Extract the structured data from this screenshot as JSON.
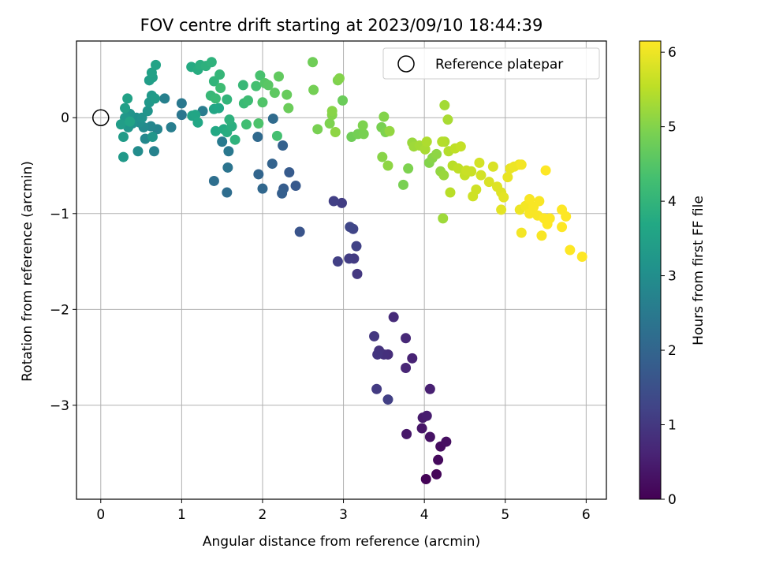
{
  "chart_data": {
    "type": "scatter",
    "title": "FOV centre drift starting at 2023/09/10 18:44:39",
    "xlabel": "Angular distance from reference (arcmin)",
    "ylabel": "Rotation from reference (arcmin)",
    "xlim": [
      -0.3,
      6.25
    ],
    "ylim": [
      -3.98,
      0.8
    ],
    "x_ticks": [
      0,
      1,
      2,
      3,
      4,
      5,
      6
    ],
    "x_tick_labels": [
      "0",
      "1",
      "2",
      "3",
      "4",
      "5",
      "6"
    ],
    "y_ticks": [
      0,
      -1,
      -2,
      -3
    ],
    "y_tick_labels": [
      "0",
      "−1",
      "−2",
      "−3"
    ],
    "grid": true,
    "legend": {
      "position": "top-right",
      "entries": [
        "Reference platepar"
      ]
    },
    "reference_point": {
      "label": "Reference platepar",
      "x": 0,
      "y": 0
    },
    "colorbar": {
      "label": "Hours from first FF file",
      "min": 0,
      "max": 6.15,
      "ticks": [
        0,
        1,
        2,
        3,
        4,
        5,
        6
      ],
      "tick_labels": [
        "0",
        "1",
        "2",
        "3",
        "4",
        "5",
        "6"
      ],
      "colormap": "viridis"
    },
    "points": [
      {
        "x": 4.02,
        "y": -3.77,
        "h": 0.05
      },
      {
        "x": 4.15,
        "y": -3.72,
        "h": 0.1
      },
      {
        "x": 4.17,
        "y": -3.57,
        "h": 0.15
      },
      {
        "x": 4.2,
        "y": -3.43,
        "h": 0.2
      },
      {
        "x": 4.27,
        "y": -3.38,
        "h": 0.25
      },
      {
        "x": 4.07,
        "y": -3.33,
        "h": 0.3
      },
      {
        "x": 3.97,
        "y": -3.24,
        "h": 0.35
      },
      {
        "x": 3.78,
        "y": -3.3,
        "h": 0.4
      },
      {
        "x": 3.98,
        "y": -3.13,
        "h": 0.45
      },
      {
        "x": 4.03,
        "y": -3.11,
        "h": 0.5
      },
      {
        "x": 4.07,
        "y": -2.83,
        "h": 0.55
      },
      {
        "x": 3.85,
        "y": -2.51,
        "h": 0.6
      },
      {
        "x": 3.77,
        "y": -2.61,
        "h": 0.65
      },
      {
        "x": 3.77,
        "y": -2.3,
        "h": 0.7
      },
      {
        "x": 3.62,
        "y": -2.08,
        "h": 0.75
      },
      {
        "x": 3.55,
        "y": -2.47,
        "h": 0.8
      },
      {
        "x": 3.5,
        "y": -2.47,
        "h": 0.85
      },
      {
        "x": 3.44,
        "y": -2.43,
        "h": 0.9
      },
      {
        "x": 3.42,
        "y": -2.47,
        "h": 0.95
      },
      {
        "x": 3.38,
        "y": -2.28,
        "h": 1.0
      },
      {
        "x": 3.41,
        "y": -2.83,
        "h": 1.05
      },
      {
        "x": 3.55,
        "y": -2.94,
        "h": 1.15
      },
      {
        "x": 3.17,
        "y": -1.63,
        "h": 1.0
      },
      {
        "x": 3.13,
        "y": -1.47,
        "h": 1.05
      },
      {
        "x": 3.07,
        "y": -1.47,
        "h": 1.1
      },
      {
        "x": 2.93,
        "y": -1.5,
        "h": 1.15
      },
      {
        "x": 3.16,
        "y": -1.34,
        "h": 1.2
      },
      {
        "x": 3.12,
        "y": -1.16,
        "h": 1.25
      },
      {
        "x": 3.08,
        "y": -1.14,
        "h": 1.3
      },
      {
        "x": 2.98,
        "y": -0.89,
        "h": 1.1
      },
      {
        "x": 2.88,
        "y": -0.87,
        "h": 1.15
      },
      {
        "x": 2.46,
        "y": -1.19,
        "h": 1.6
      },
      {
        "x": 2.41,
        "y": -0.71,
        "h": 1.7
      },
      {
        "x": 2.33,
        "y": -0.57,
        "h": 1.75
      },
      {
        "x": 2.26,
        "y": -0.74,
        "h": 1.8
      },
      {
        "x": 2.24,
        "y": -0.79,
        "h": 1.85
      },
      {
        "x": 2.25,
        "y": -0.29,
        "h": 1.9
      },
      {
        "x": 2.12,
        "y": -0.48,
        "h": 1.95
      },
      {
        "x": 1.95,
        "y": -0.59,
        "h": 2.0
      },
      {
        "x": 2.0,
        "y": -0.74,
        "h": 2.05
      },
      {
        "x": 1.94,
        "y": -0.2,
        "h": 2.1
      },
      {
        "x": 2.13,
        "y": -0.01,
        "h": 2.15
      },
      {
        "x": 1.56,
        "y": -0.78,
        "h": 2.2
      },
      {
        "x": 1.4,
        "y": -0.66,
        "h": 2.25
      },
      {
        "x": 1.57,
        "y": -0.52,
        "h": 2.35
      },
      {
        "x": 1.58,
        "y": -0.35,
        "h": 2.45
      },
      {
        "x": 1.5,
        "y": -0.25,
        "h": 2.5
      },
      {
        "x": 1.26,
        "y": 0.07,
        "h": 2.55
      },
      {
        "x": 1.0,
        "y": 0.03,
        "h": 2.4
      },
      {
        "x": 1.0,
        "y": 0.15,
        "h": 2.45
      },
      {
        "x": 0.87,
        "y": -0.1,
        "h": 2.6
      },
      {
        "x": 0.79,
        "y": 0.2,
        "h": 2.65
      },
      {
        "x": 0.66,
        "y": -0.35,
        "h": 2.7
      },
      {
        "x": 0.7,
        "y": -0.12,
        "h": 2.75
      },
      {
        "x": 0.62,
        "y": -0.09,
        "h": 2.8
      },
      {
        "x": 0.55,
        "y": -0.22,
        "h": 2.85
      },
      {
        "x": 0.53,
        "y": -0.1,
        "h": 2.9
      },
      {
        "x": 0.46,
        "y": -0.35,
        "h": 2.95
      },
      {
        "x": 0.48,
        "y": -0.05,
        "h": 3.0
      },
      {
        "x": 0.44,
        "y": 0.0,
        "h": 3.05
      },
      {
        "x": 0.39,
        "y": -0.06,
        "h": 3.1
      },
      {
        "x": 0.36,
        "y": 0.04,
        "h": 3.15
      },
      {
        "x": 0.34,
        "y": -0.1,
        "h": 3.2
      },
      {
        "x": 0.3,
        "y": 0.0,
        "h": 3.25
      },
      {
        "x": 0.28,
        "y": -0.41,
        "h": 3.3
      },
      {
        "x": 0.28,
        "y": -0.2,
        "h": 3.35
      },
      {
        "x": 0.25,
        "y": -0.07,
        "h": 3.4
      },
      {
        "x": 0.3,
        "y": 0.1,
        "h": 3.45
      },
      {
        "x": 0.33,
        "y": 0.2,
        "h": 3.5
      },
      {
        "x": 0.36,
        "y": -0.04,
        "h": 3.55
      },
      {
        "x": 0.51,
        "y": 0.0,
        "h": 3.1
      },
      {
        "x": 0.58,
        "y": 0.07,
        "h": 3.15
      },
      {
        "x": 0.64,
        "y": -0.2,
        "h": 3.2
      },
      {
        "x": 0.6,
        "y": 0.16,
        "h": 3.25
      },
      {
        "x": 0.63,
        "y": 0.23,
        "h": 3.3
      },
      {
        "x": 0.67,
        "y": 0.2,
        "h": 3.35
      },
      {
        "x": 0.6,
        "y": 0.39,
        "h": 3.4
      },
      {
        "x": 0.64,
        "y": 0.42,
        "h": 3.45
      },
      {
        "x": 0.63,
        "y": 0.47,
        "h": 3.5
      },
      {
        "x": 0.68,
        "y": 0.55,
        "h": 3.55
      },
      {
        "x": 1.12,
        "y": 0.53,
        "h": 3.75
      },
      {
        "x": 1.2,
        "y": 0.5,
        "h": 3.8
      },
      {
        "x": 1.23,
        "y": 0.55,
        "h": 3.85
      },
      {
        "x": 1.3,
        "y": 0.54,
        "h": 3.9
      },
      {
        "x": 1.37,
        "y": 0.58,
        "h": 3.95
      },
      {
        "x": 1.4,
        "y": 0.38,
        "h": 4.0
      },
      {
        "x": 1.47,
        "y": 0.45,
        "h": 4.05
      },
      {
        "x": 1.36,
        "y": 0.23,
        "h": 4.1
      },
      {
        "x": 1.42,
        "y": 0.2,
        "h": 4.15
      },
      {
        "x": 1.48,
        "y": 0.31,
        "h": 4.2
      },
      {
        "x": 1.4,
        "y": 0.09,
        "h": 3.6
      },
      {
        "x": 1.46,
        "y": 0.1,
        "h": 3.65
      },
      {
        "x": 1.42,
        "y": -0.14,
        "h": 3.7
      },
      {
        "x": 1.52,
        "y": -0.12,
        "h": 3.75
      },
      {
        "x": 1.56,
        "y": -0.15,
        "h": 3.8
      },
      {
        "x": 1.62,
        "y": -0.09,
        "h": 3.85
      },
      {
        "x": 1.59,
        "y": -0.02,
        "h": 3.9
      },
      {
        "x": 1.66,
        "y": -0.23,
        "h": 3.95
      },
      {
        "x": 1.56,
        "y": 0.19,
        "h": 4.0
      },
      {
        "x": 1.13,
        "y": 0.02,
        "h": 3.55
      },
      {
        "x": 1.17,
        "y": 0.03,
        "h": 3.6
      },
      {
        "x": 1.2,
        "y": -0.05,
        "h": 3.65
      },
      {
        "x": 1.76,
        "y": 0.34,
        "h": 4.1
      },
      {
        "x": 1.77,
        "y": 0.15,
        "h": 4.15
      },
      {
        "x": 1.82,
        "y": 0.18,
        "h": 4.2
      },
      {
        "x": 1.8,
        "y": -0.07,
        "h": 4.25
      },
      {
        "x": 1.92,
        "y": 0.33,
        "h": 4.3
      },
      {
        "x": 1.97,
        "y": 0.44,
        "h": 4.35
      },
      {
        "x": 1.95,
        "y": -0.06,
        "h": 4.4
      },
      {
        "x": 2.0,
        "y": 0.16,
        "h": 4.45
      },
      {
        "x": 2.03,
        "y": 0.36,
        "h": 4.5
      },
      {
        "x": 2.07,
        "y": 0.34,
        "h": 4.55
      },
      {
        "x": 2.15,
        "y": 0.26,
        "h": 4.6
      },
      {
        "x": 2.2,
        "y": 0.43,
        "h": 4.65
      },
      {
        "x": 2.3,
        "y": 0.24,
        "h": 4.7
      },
      {
        "x": 2.32,
        "y": 0.1,
        "h": 4.75
      },
      {
        "x": 2.18,
        "y": -0.19,
        "h": 4.3
      },
      {
        "x": 2.62,
        "y": 0.58,
        "h": 4.8
      },
      {
        "x": 2.63,
        "y": 0.29,
        "h": 4.85
      },
      {
        "x": 2.68,
        "y": -0.12,
        "h": 4.9
      },
      {
        "x": 2.83,
        "y": -0.06,
        "h": 4.95
      },
      {
        "x": 2.86,
        "y": 0.03,
        "h": 5.0
      },
      {
        "x": 2.86,
        "y": 0.07,
        "h": 5.05
      },
      {
        "x": 2.9,
        "y": -0.15,
        "h": 5.1
      },
      {
        "x": 2.93,
        "y": 0.39,
        "h": 4.95
      },
      {
        "x": 2.95,
        "y": 0.41,
        "h": 5.0
      },
      {
        "x": 2.99,
        "y": 0.18,
        "h": 4.75
      },
      {
        "x": 3.1,
        "y": -0.2,
        "h": 4.8
      },
      {
        "x": 3.18,
        "y": -0.17,
        "h": 4.85
      },
      {
        "x": 3.25,
        "y": -0.17,
        "h": 4.9
      },
      {
        "x": 3.24,
        "y": -0.08,
        "h": 4.95
      },
      {
        "x": 3.47,
        "y": -0.1,
        "h": 4.9
      },
      {
        "x": 3.52,
        "y": -0.15,
        "h": 4.95
      },
      {
        "x": 3.5,
        "y": 0.01,
        "h": 5.0
      },
      {
        "x": 3.48,
        "y": -0.41,
        "h": 5.05
      },
      {
        "x": 3.55,
        "y": -0.5,
        "h": 5.1
      },
      {
        "x": 3.57,
        "y": -0.14,
        "h": 5.15
      },
      {
        "x": 3.74,
        "y": -0.7,
        "h": 4.9
      },
      {
        "x": 3.8,
        "y": -0.53,
        "h": 4.95
      },
      {
        "x": 3.85,
        "y": -0.26,
        "h": 5.2
      },
      {
        "x": 3.87,
        "y": -0.3,
        "h": 5.25
      },
      {
        "x": 3.94,
        "y": -0.29,
        "h": 5.3
      },
      {
        "x": 4.01,
        "y": -0.33,
        "h": 5.35
      },
      {
        "x": 4.03,
        "y": -0.25,
        "h": 5.4
      },
      {
        "x": 4.06,
        "y": -0.47,
        "h": 5.0
      },
      {
        "x": 4.1,
        "y": -0.42,
        "h": 5.05
      },
      {
        "x": 4.15,
        "y": -0.38,
        "h": 5.1
      },
      {
        "x": 4.2,
        "y": -0.56,
        "h": 5.15
      },
      {
        "x": 4.24,
        "y": -0.6,
        "h": 5.2
      },
      {
        "x": 4.23,
        "y": -1.05,
        "h": 5.25
      },
      {
        "x": 4.25,
        "y": 0.13,
        "h": 5.3
      },
      {
        "x": 4.29,
        "y": -0.02,
        "h": 5.35
      },
      {
        "x": 4.25,
        "y": -0.25,
        "h": 5.4
      },
      {
        "x": 4.22,
        "y": -0.25,
        "h": 5.45
      },
      {
        "x": 4.3,
        "y": -0.35,
        "h": 5.45
      },
      {
        "x": 4.35,
        "y": -0.5,
        "h": 5.5
      },
      {
        "x": 4.32,
        "y": -0.78,
        "h": 5.5
      },
      {
        "x": 4.38,
        "y": -0.32,
        "h": 5.55
      },
      {
        "x": 4.42,
        "y": -0.53,
        "h": 5.55
      },
      {
        "x": 4.45,
        "y": -0.3,
        "h": 5.6
      },
      {
        "x": 4.5,
        "y": -0.6,
        "h": 5.6
      },
      {
        "x": 4.52,
        "y": -0.55,
        "h": 5.65
      },
      {
        "x": 4.58,
        "y": -0.56,
        "h": 5.65
      },
      {
        "x": 4.6,
        "y": -0.82,
        "h": 5.7
      },
      {
        "x": 4.64,
        "y": -0.75,
        "h": 5.7
      },
      {
        "x": 4.68,
        "y": -0.47,
        "h": 5.75
      },
      {
        "x": 4.7,
        "y": -0.6,
        "h": 5.75
      },
      {
        "x": 4.8,
        "y": -0.67,
        "h": 5.8
      },
      {
        "x": 4.85,
        "y": -0.51,
        "h": 5.8
      },
      {
        "x": 4.9,
        "y": -0.72,
        "h": 5.85
      },
      {
        "x": 4.95,
        "y": -0.78,
        "h": 5.85
      },
      {
        "x": 4.95,
        "y": -0.96,
        "h": 5.9
      },
      {
        "x": 4.98,
        "y": -0.83,
        "h": 5.9
      },
      {
        "x": 5.03,
        "y": -0.62,
        "h": 5.95
      },
      {
        "x": 5.06,
        "y": -0.53,
        "h": 5.95
      },
      {
        "x": 5.11,
        "y": -0.51,
        "h": 6.0
      },
      {
        "x": 5.17,
        "y": -0.49,
        "h": 6.0
      },
      {
        "x": 5.2,
        "y": -0.49,
        "h": 6.05
      },
      {
        "x": 5.18,
        "y": -0.96,
        "h": 6.0
      },
      {
        "x": 5.2,
        "y": -1.2,
        "h": 6.05
      },
      {
        "x": 5.25,
        "y": -0.92,
        "h": 6.05
      },
      {
        "x": 5.3,
        "y": -0.85,
        "h": 6.1
      },
      {
        "x": 5.3,
        "y": -1.0,
        "h": 6.1
      },
      {
        "x": 5.35,
        "y": -0.93,
        "h": 6.1
      },
      {
        "x": 5.4,
        "y": -1.02,
        "h": 6.1
      },
      {
        "x": 5.42,
        "y": -0.87,
        "h": 6.1
      },
      {
        "x": 5.45,
        "y": -1.23,
        "h": 6.1
      },
      {
        "x": 5.48,
        "y": -1.05,
        "h": 6.15
      },
      {
        "x": 5.52,
        "y": -1.11,
        "h": 6.15
      },
      {
        "x": 5.5,
        "y": -0.55,
        "h": 6.15
      },
      {
        "x": 5.55,
        "y": -1.05,
        "h": 6.15
      },
      {
        "x": 5.7,
        "y": -1.14,
        "h": 6.15
      },
      {
        "x": 5.7,
        "y": -0.96,
        "h": 6.15
      },
      {
        "x": 5.75,
        "y": -1.03,
        "h": 6.15
      },
      {
        "x": 5.8,
        "y": -1.38,
        "h": 6.15
      },
      {
        "x": 5.95,
        "y": -1.45,
        "h": 6.15
      }
    ]
  }
}
